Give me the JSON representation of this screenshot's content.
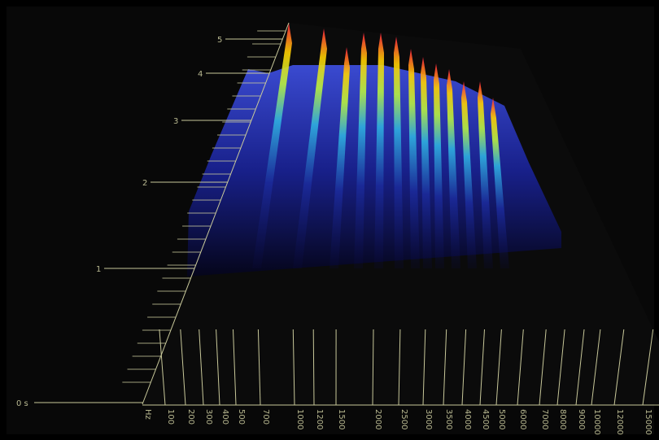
{
  "time_axis": {
    "labels": [
      "0 s",
      "1",
      "2",
      "3",
      "4",
      "5"
    ]
  },
  "frequency_axis": {
    "labels": [
      "Hz",
      "100",
      "200",
      "300",
      "400",
      "500",
      "700",
      "1000",
      "1200",
      "1500",
      "2000",
      "2500",
      "3000",
      "3500",
      "4000",
      "4500",
      "5000",
      "6000",
      "7000",
      "8000",
      "9000",
      "10000",
      "12000",
      "15000"
    ]
  }
}
